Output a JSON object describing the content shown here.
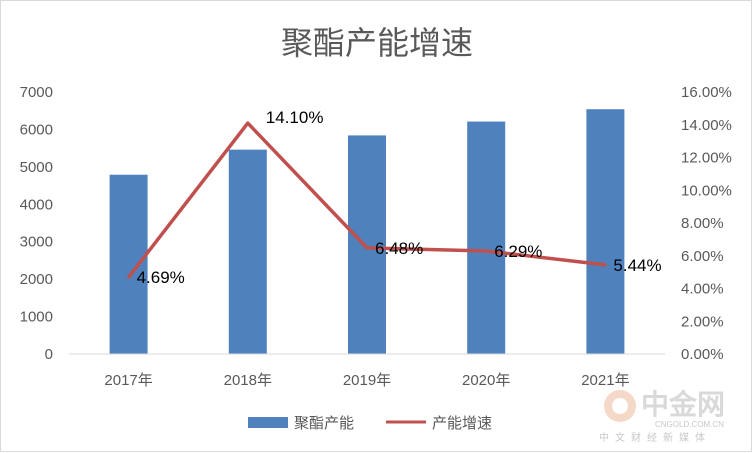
{
  "chart_data": {
    "type": "bar",
    "title": "聚酯产能增速",
    "categories": [
      "2017年",
      "2018年",
      "2019年",
      "2020年",
      "2021年"
    ],
    "series": [
      {
        "name": "聚酯产能",
        "type": "bar",
        "axis": "left",
        "values": [
          4790,
          5460,
          5840,
          6210,
          6540
        ]
      },
      {
        "name": "产能增速",
        "type": "line",
        "axis": "right",
        "values": [
          4.69,
          14.1,
          6.48,
          6.29,
          5.44
        ],
        "labels": [
          "4.69%",
          "14.10%",
          "6.48%",
          "6.29%",
          "5.44%"
        ]
      }
    ],
    "y_left": {
      "ylim": [
        0,
        7000
      ],
      "ticks": [
        "0",
        "1000",
        "2000",
        "3000",
        "4000",
        "5000",
        "6000",
        "7000"
      ]
    },
    "y_right": {
      "ylim": [
        0,
        16
      ],
      "ticks": [
        "0.00%",
        "2.00%",
        "4.00%",
        "6.00%",
        "8.00%",
        "10.00%",
        "12.00%",
        "14.00%",
        "16.00%"
      ]
    },
    "grid": false,
    "legend_position": "bottom",
    "colors": {
      "bar": "#4f81bd",
      "line": "#c0504d"
    }
  },
  "watermark": {
    "brand": "中金网",
    "site": "CNGOLD.COM.CN",
    "tagline": "中文财经新媒体"
  }
}
